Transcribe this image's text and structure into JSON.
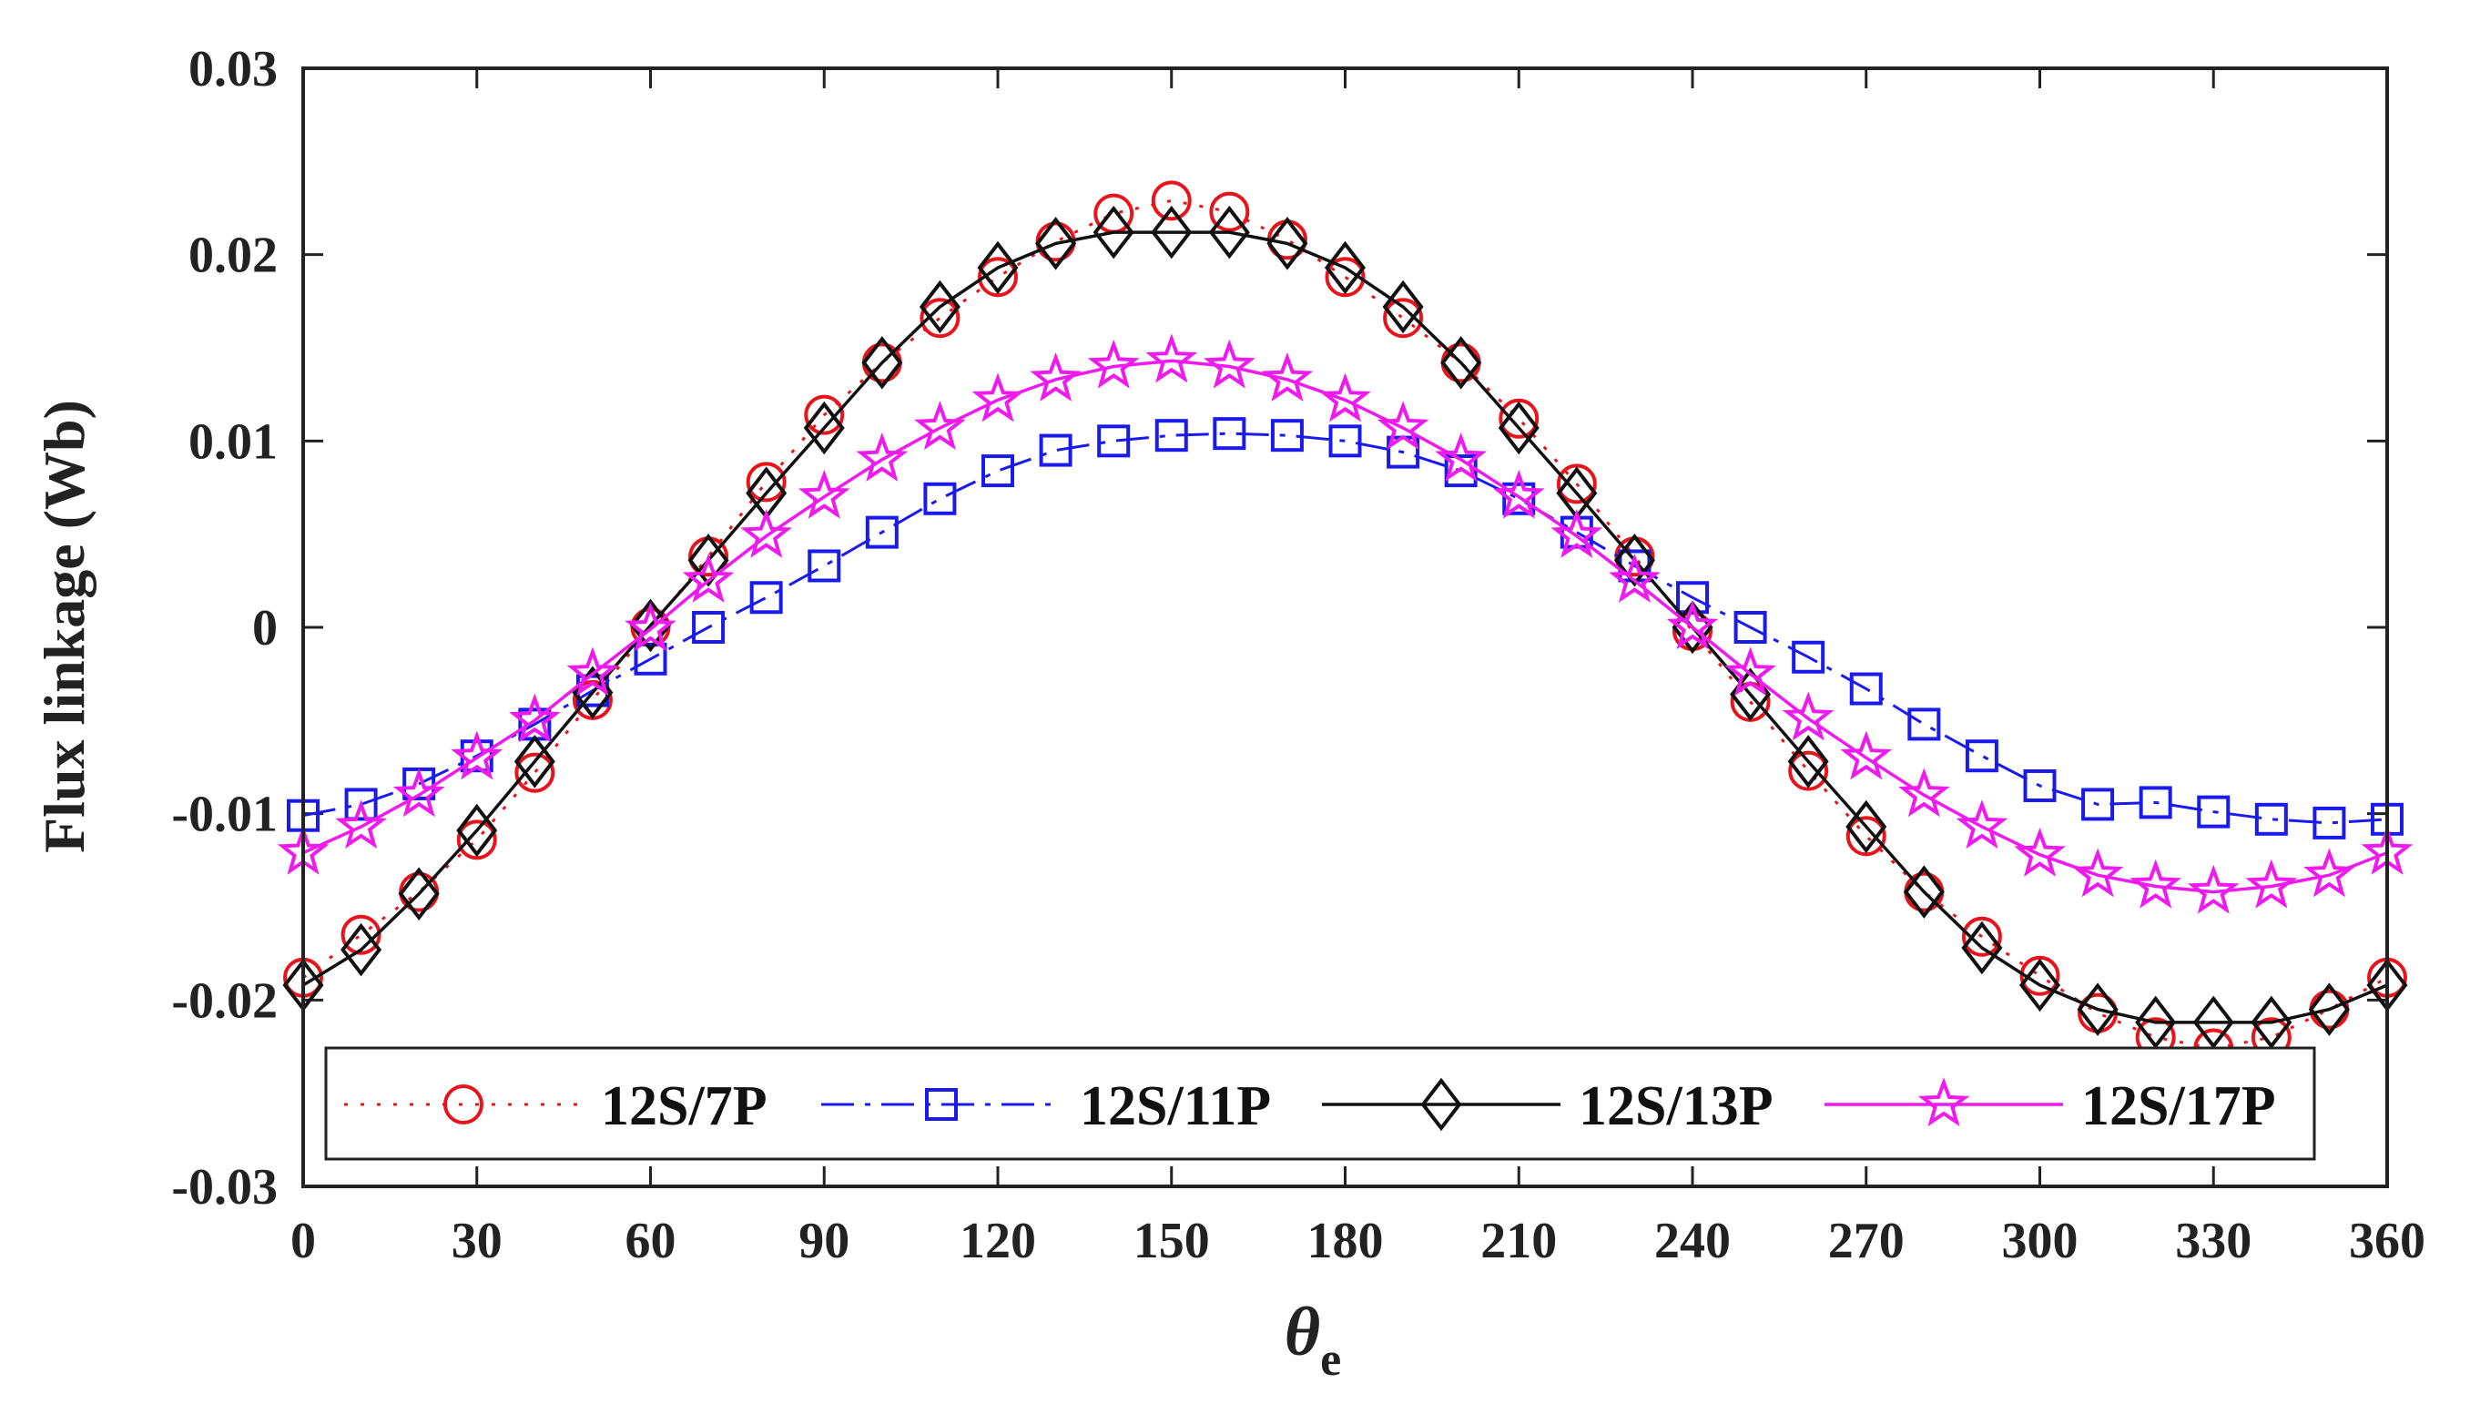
{
  "chart_data": {
    "type": "line",
    "title": "",
    "xlabel": "θ",
    "xlabel_subscript": "e",
    "ylabel": "Flux linkage (Wb)",
    "xlim": [
      0,
      360
    ],
    "ylim": [
      -0.03,
      0.03
    ],
    "x_ticks": [
      0,
      30,
      60,
      90,
      120,
      150,
      180,
      210,
      240,
      270,
      300,
      330,
      360
    ],
    "x_tick_labels": [
      "0",
      "30",
      "60",
      "90",
      "120",
      "150",
      "180",
      "210",
      "240",
      "270",
      "300",
      "330",
      "360"
    ],
    "y_ticks": [
      -0.03,
      -0.02,
      -0.01,
      0,
      0.01,
      0.02,
      0.03
    ],
    "y_tick_labels": [
      "-0.03",
      "-0.02",
      "-0.01",
      "0",
      "0.01",
      "0.02",
      "0.03"
    ],
    "grid": false,
    "legend_position": "bottom",
    "x": [
      0,
      10,
      20,
      30,
      40,
      50,
      60,
      70,
      80,
      90,
      100,
      110,
      120,
      130,
      140,
      150,
      160,
      170,
      180,
      190,
      200,
      210,
      220,
      230,
      240,
      250,
      260,
      270,
      280,
      290,
      300,
      310,
      320,
      330,
      340,
      350,
      360
    ],
    "series": [
      {
        "name": "12S/7P",
        "color": "#e8141b",
        "dash": "dotted",
        "marker": "circle",
        "values": [
          -0.0188,
          -0.0165,
          -0.0142,
          -0.0114,
          -0.0078,
          -0.0039,
          0.0,
          0.0038,
          0.0078,
          0.0114,
          0.0142,
          0.0166,
          0.0188,
          0.0207,
          0.0222,
          0.0229,
          0.0223,
          0.0208,
          0.0188,
          0.0166,
          0.0142,
          0.0112,
          0.0077,
          0.0038,
          -0.0002,
          -0.004,
          -0.0077,
          -0.0112,
          -0.0142,
          -0.0166,
          -0.0187,
          -0.0207,
          -0.022,
          -0.0226,
          -0.022,
          -0.0205,
          -0.0188
        ]
      },
      {
        "name": "12S/11P",
        "color": "#1a1aec",
        "dash": "dashdot",
        "marker": "square",
        "values": [
          -0.0101,
          -0.0095,
          -0.0084,
          -0.0069,
          -0.0052,
          -0.0034,
          -0.0017,
          0.0,
          0.0016,
          0.0033,
          0.0051,
          0.0069,
          0.0084,
          0.0095,
          0.01,
          0.0103,
          0.0104,
          0.0103,
          0.01,
          0.0094,
          0.0084,
          0.0069,
          0.0051,
          0.0033,
          0.0016,
          0.0,
          -0.0016,
          -0.0033,
          -0.0052,
          -0.0069,
          -0.0085,
          -0.0095,
          -0.0094,
          -0.0099,
          -0.0103,
          -0.0105,
          -0.0103
        ]
      },
      {
        "name": "12S/13P",
        "color": "#111111",
        "dash": "solid",
        "marker": "diamond",
        "values": [
          -0.0192,
          -0.0173,
          -0.0143,
          -0.0109,
          -0.0072,
          -0.0035,
          0.0001,
          0.0036,
          0.0072,
          0.0107,
          0.0142,
          0.0172,
          0.0193,
          0.0206,
          0.0212,
          0.0212,
          0.0212,
          0.0206,
          0.0193,
          0.0172,
          0.0142,
          0.0107,
          0.0072,
          0.0036,
          0.0,
          -0.0036,
          -0.0072,
          -0.0107,
          -0.0142,
          -0.0172,
          -0.0192,
          -0.0205,
          -0.0212,
          -0.0212,
          -0.0212,
          -0.0205,
          -0.0192
        ]
      },
      {
        "name": "12S/17P",
        "color": "#ee1aee",
        "dash": "solid",
        "marker": "star",
        "values": [
          -0.0121,
          -0.0107,
          -0.009,
          -0.007,
          -0.005,
          -0.0025,
          -0.0001,
          0.0025,
          0.0049,
          0.007,
          0.009,
          0.0107,
          0.0122,
          0.0133,
          0.014,
          0.0143,
          0.014,
          0.0133,
          0.0122,
          0.0107,
          0.009,
          0.007,
          0.0049,
          0.0025,
          0.0,
          -0.0025,
          -0.0049,
          -0.007,
          -0.009,
          -0.0107,
          -0.0122,
          -0.0133,
          -0.0139,
          -0.0142,
          -0.0139,
          -0.0133,
          -0.0121
        ]
      }
    ]
  }
}
